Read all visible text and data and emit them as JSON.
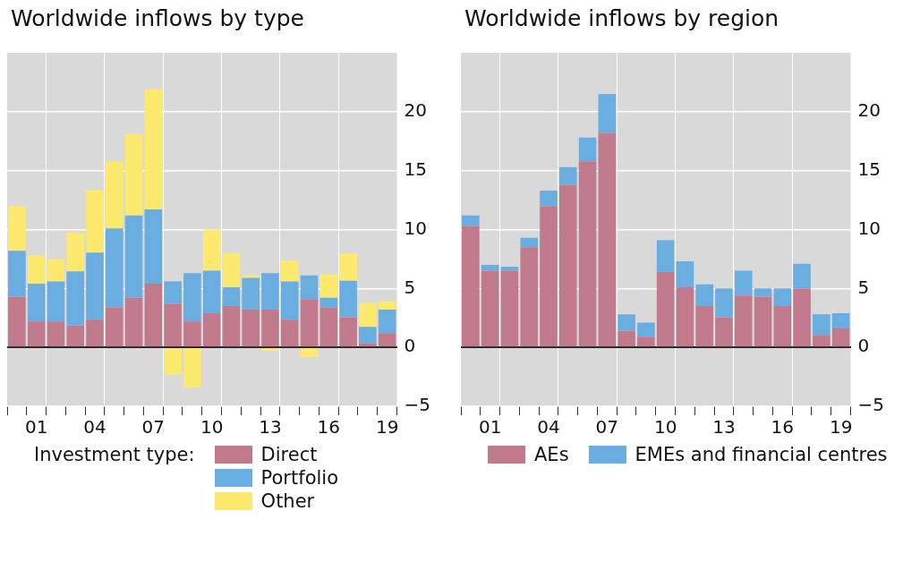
{
  "chart_data": [
    {
      "type": "bar",
      "title": "Worldwide inflows by type",
      "legend_title": "Investment type:",
      "stacked": true,
      "grid": true,
      "legend": "bottom",
      "categories": [
        null,
        "01",
        null,
        null,
        "04",
        null,
        null,
        "07",
        null,
        null,
        "10",
        null,
        null,
        "13",
        null,
        null,
        "16",
        null,
        null,
        "19"
      ],
      "ylim": [
        -5,
        25
      ],
      "yticks": [
        -5,
        0,
        5,
        10,
        15,
        20
      ],
      "series": [
        {
          "name": "Direct",
          "color": "#c07a8c",
          "values": [
            4.3,
            2.2,
            2.2,
            1.85,
            2.35,
            3.4,
            4.2,
            5.4,
            3.7,
            2.2,
            2.9,
            3.5,
            3.2,
            3.2,
            2.35,
            4.1,
            3.4,
            2.55,
            0.35,
            1.2
          ]
        },
        {
          "name": "Portfolio",
          "color": "#6aade0",
          "values": [
            3.9,
            3.2,
            3.4,
            4.6,
            5.7,
            6.7,
            7.0,
            6.3,
            1.9,
            4.1,
            3.6,
            1.6,
            2.7,
            3.1,
            3.25,
            2.0,
            0.8,
            3.1,
            1.4,
            2.0
          ]
        },
        {
          "name": "Other",
          "color": "#fde96e",
          "values": [
            3.8,
            2.4,
            1.9,
            3.3,
            5.3,
            5.7,
            6.9,
            10.2,
            -2.3,
            -3.4,
            3.5,
            2.9,
            0.2,
            -0.3,
            1.75,
            -0.8,
            2.0,
            2.3,
            2.0,
            0.7
          ]
        }
      ]
    },
    {
      "type": "bar",
      "title": "Worldwide inflows by region",
      "stacked": true,
      "grid": true,
      "legend": "bottom",
      "categories": [
        null,
        "01",
        null,
        null,
        "04",
        null,
        null,
        "07",
        null,
        null,
        "10",
        null,
        null,
        "13",
        null,
        null,
        "16",
        null,
        null,
        "19"
      ],
      "ylim": [
        -5,
        25
      ],
      "yticks": [
        -5,
        0,
        5,
        10,
        15,
        20
      ],
      "series": [
        {
          "name": "AEs",
          "color": "#c07a8c",
          "values": [
            10.3,
            6.5,
            6.5,
            8.5,
            12.0,
            13.8,
            15.8,
            18.2,
            1.4,
            0.9,
            6.4,
            5.1,
            3.5,
            2.55,
            4.4,
            4.3,
            3.5,
            5.0,
            1.05,
            1.6
          ]
        },
        {
          "name": "EMEs and financial centres",
          "color": "#6aade0",
          "values": [
            0.9,
            0.5,
            0.35,
            0.8,
            1.3,
            1.5,
            2.0,
            3.3,
            1.4,
            1.2,
            2.7,
            2.2,
            1.85,
            2.45,
            2.1,
            0.7,
            1.5,
            2.1,
            1.75,
            1.3
          ]
        }
      ]
    }
  ]
}
